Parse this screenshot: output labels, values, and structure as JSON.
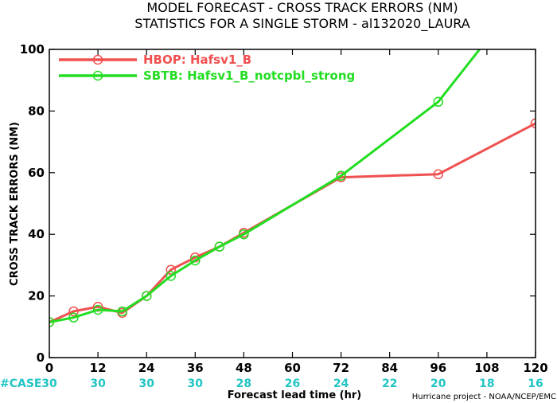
{
  "title_line1": "MODEL FORECAST - CROSS TRACK ERRORS (NM)",
  "title_line2": "STATISTICS FOR A SINGLE STORM - al132020_LAURA",
  "xlabel": "Forecast lead time (hr)",
  "ylabel": "CROSS TRACK ERRORS (NM)",
  "case_label": "#CASE",
  "credit": "Hurricane project - NOAA/NCEP/EMC",
  "case_counts": [
    {
      "x": 0,
      "count": "30"
    },
    {
      "x": 12,
      "count": "30"
    },
    {
      "x": 24,
      "count": "30"
    },
    {
      "x": 36,
      "count": "30"
    },
    {
      "x": 48,
      "count": "28"
    },
    {
      "x": 60,
      "count": "26"
    },
    {
      "x": 72,
      "count": "24"
    },
    {
      "x": 84,
      "count": "22"
    },
    {
      "x": 96,
      "count": "20"
    },
    {
      "x": 108,
      "count": "18"
    },
    {
      "x": 120,
      "count": "16"
    }
  ],
  "chart_data": {
    "type": "line",
    "xlim": [
      0,
      120
    ],
    "ylim": [
      0,
      100
    ],
    "xticks": [
      0,
      12,
      24,
      36,
      48,
      60,
      72,
      84,
      96,
      108,
      120
    ],
    "yticks": [
      0,
      20,
      40,
      60,
      80,
      100
    ],
    "grid": false,
    "legend_position": "top-left",
    "series": [
      {
        "name": "HBOP: Hafsv1_B",
        "color": "#f05050",
        "x": [
          0,
          6,
          12,
          18,
          24,
          30,
          36,
          42,
          48,
          72,
          96,
          120
        ],
        "y": [
          11.5,
          15.0,
          16.5,
          14.5,
          20.0,
          28.5,
          32.5,
          36.0,
          40.5,
          58.5,
          59.5,
          76.0
        ],
        "markers": [
          0,
          6,
          12,
          18,
          24,
          30,
          36,
          42,
          48,
          72,
          96,
          120
        ]
      },
      {
        "name": "SBTB: Hafsv1_B_notcpbl_strong",
        "color": "#22dd22",
        "x": [
          0,
          6,
          12,
          18,
          24,
          30,
          36,
          42,
          48,
          72,
          96,
          108
        ],
        "y": [
          11.5,
          13.0,
          15.5,
          15.0,
          20.0,
          26.5,
          31.5,
          36.0,
          40.0,
          59.0,
          83.0,
          103.0
        ],
        "markers": [
          0,
          6,
          12,
          18,
          24,
          30,
          36,
          42,
          48,
          72,
          96
        ]
      }
    ]
  }
}
